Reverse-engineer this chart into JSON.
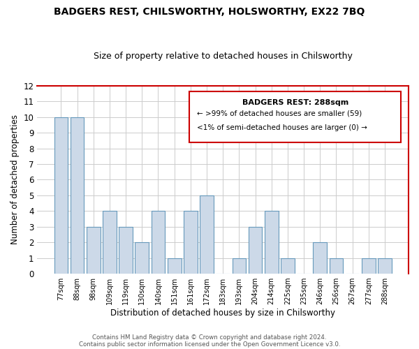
{
  "title": "BADGERS REST, CHILSWORTHY, HOLSWORTHY, EX22 7BQ",
  "subtitle": "Size of property relative to detached houses in Chilsworthy",
  "xlabel": "Distribution of detached houses by size in Chilsworthy",
  "ylabel": "Number of detached properties",
  "bar_color": "#ccd9e8",
  "bar_edge_color": "#6699bb",
  "categories": [
    "77sqm",
    "88sqm",
    "98sqm",
    "109sqm",
    "119sqm",
    "130sqm",
    "140sqm",
    "151sqm",
    "161sqm",
    "172sqm",
    "183sqm",
    "193sqm",
    "204sqm",
    "214sqm",
    "225sqm",
    "235sqm",
    "246sqm",
    "256sqm",
    "267sqm",
    "277sqm",
    "288sqm"
  ],
  "values": [
    10,
    10,
    3,
    4,
    3,
    2,
    4,
    1,
    4,
    5,
    0,
    1,
    3,
    4,
    1,
    0,
    2,
    1,
    0,
    1,
    1
  ],
  "ylim": [
    0,
    12
  ],
  "yticks": [
    0,
    1,
    2,
    3,
    4,
    5,
    6,
    7,
    8,
    9,
    10,
    11,
    12
  ],
  "legend_title": "BADGERS REST: 288sqm",
  "legend_line1": "← >99% of detached houses are smaller (59)",
  "legend_line2": "<1% of semi-detached houses are larger (0) →",
  "legend_box_color": "#ffffff",
  "legend_box_edge_color": "#cc0000",
  "footer1": "Contains HM Land Registry data © Crown copyright and database right 2024.",
  "footer2": "Contains public sector information licensed under the Open Government Licence v3.0.",
  "background_color": "#ffffff",
  "grid_color": "#cccccc",
  "red_border_color": "#cc0000",
  "top_spine_color": "#cc0000",
  "right_spine_color": "#cc0000"
}
